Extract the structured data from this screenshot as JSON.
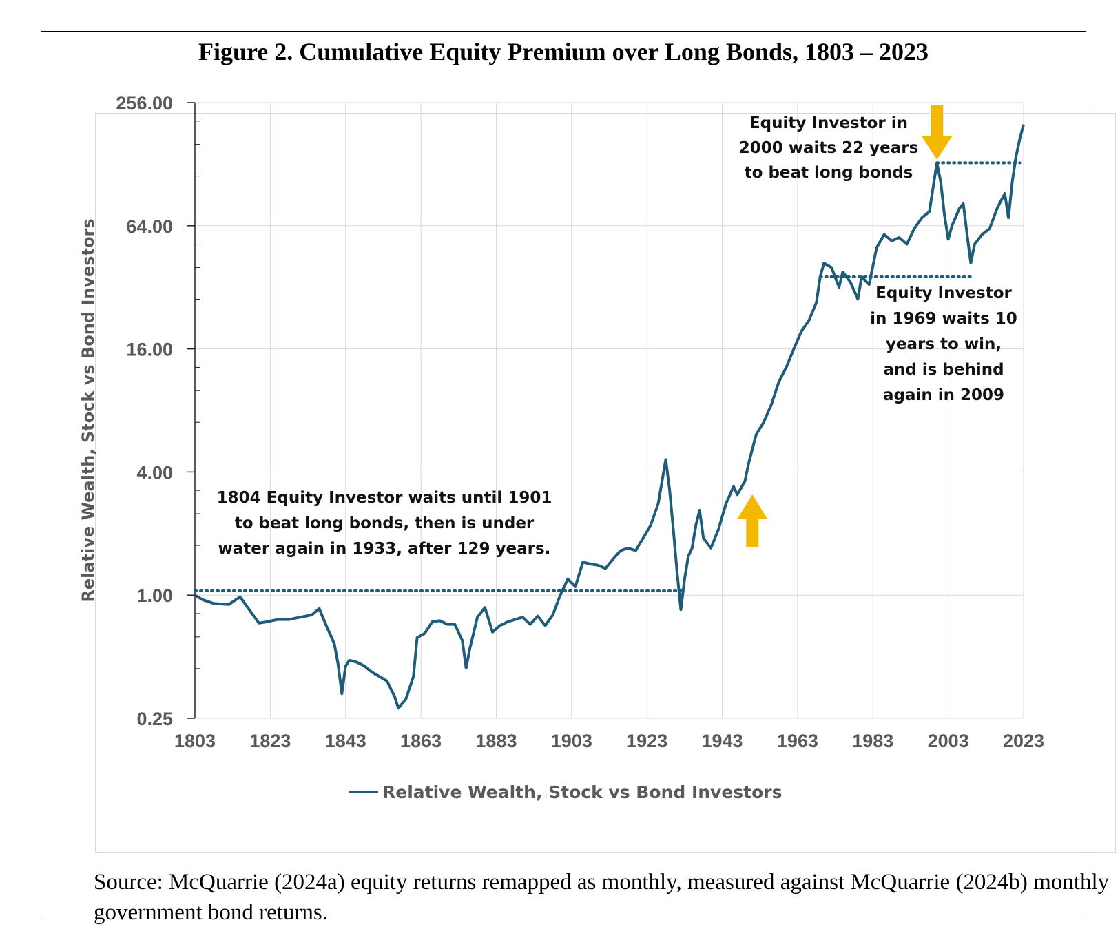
{
  "figure": {
    "title": "Figure 2.  Cumulative Equity Premium over Long Bonds, 1803 – 2023",
    "source": "Source: McQuarrie (2024a) equity returns remapped as monthly, measured against McQuarrie (2024b) monthly government bond returns."
  },
  "colors": {
    "series": "#1f5c7a",
    "arrow": "#f5b800",
    "grid": "#d9d9d9",
    "text": "#595959"
  },
  "chart_data": {
    "type": "line",
    "title": "Figure 2.  Cumulative Equity Premium over Long Bonds, 1803 – 2023",
    "xlabel": "",
    "ylabel": "Relative Wealth, Stock vs Bond Investors",
    "yscale": "log2",
    "xlim": [
      1803,
      2023
    ],
    "ylim": [
      0.25,
      256
    ],
    "y_ticks": [
      "256.00",
      "64.00",
      "16.00",
      "4.00",
      "1.00",
      "0.25"
    ],
    "y_tick_values": [
      256,
      64,
      16,
      4,
      1,
      0.25
    ],
    "x_ticks": [
      "1803",
      "1823",
      "1843",
      "1863",
      "1883",
      "1903",
      "1923",
      "1943",
      "1963",
      "1983",
      "2003",
      "2023"
    ],
    "grid": true,
    "legend_position": "bottom",
    "series": [
      {
        "name": "Relative Wealth, Stock vs Bond Investors",
        "x": [
          1803,
          1805,
          1808,
          1812,
          1815,
          1818,
          1820,
          1822,
          1825,
          1828,
          1831,
          1834,
          1836,
          1838,
          1840,
          1841,
          1842,
          1843,
          1844,
          1846,
          1848,
          1850,
          1852,
          1854,
          1856,
          1857,
          1859,
          1861,
          1862,
          1864,
          1866,
          1868,
          1870,
          1872,
          1874,
          1875,
          1876,
          1878,
          1880,
          1882,
          1884,
          1886,
          1888,
          1890,
          1892,
          1894,
          1896,
          1898,
          1900,
          1902,
          1904,
          1906,
          1908,
          1910,
          1912,
          1914,
          1916,
          1918,
          1920,
          1922,
          1924,
          1926,
          1928,
          1929,
          1930,
          1931,
          1932,
          1933,
          1934,
          1935,
          1936,
          1937,
          1938,
          1940,
          1942,
          1944,
          1946,
          1947,
          1949,
          1950,
          1952,
          1954,
          1956,
          1958,
          1960,
          1962,
          1964,
          1966,
          1968,
          1969,
          1970,
          1972,
          1974,
          1975,
          1977,
          1979,
          1980,
          1982,
          1984,
          1986,
          1988,
          1990,
          1992,
          1994,
          1996,
          1998,
          2000,
          2001,
          2002,
          2003,
          2004,
          2006,
          2007,
          2008,
          2009,
          2010,
          2012,
          2014,
          2016,
          2018,
          2019,
          2020,
          2021,
          2022,
          2023
        ],
        "values": [
          1.0,
          0.95,
          0.91,
          0.9,
          0.98,
          0.82,
          0.73,
          0.74,
          0.76,
          0.76,
          0.78,
          0.8,
          0.86,
          0.7,
          0.58,
          0.46,
          0.33,
          0.45,
          0.48,
          0.47,
          0.45,
          0.42,
          0.4,
          0.38,
          0.32,
          0.28,
          0.31,
          0.4,
          0.62,
          0.65,
          0.74,
          0.75,
          0.72,
          0.72,
          0.6,
          0.44,
          0.55,
          0.78,
          0.87,
          0.66,
          0.71,
          0.74,
          0.76,
          0.78,
          0.72,
          0.79,
          0.71,
          0.8,
          1.0,
          1.2,
          1.1,
          1.45,
          1.42,
          1.4,
          1.35,
          1.5,
          1.65,
          1.7,
          1.65,
          1.9,
          2.2,
          2.8,
          4.6,
          3.3,
          2.1,
          1.3,
          0.85,
          1.2,
          1.55,
          1.7,
          2.2,
          2.6,
          1.9,
          1.7,
          2.1,
          2.8,
          3.4,
          3.1,
          3.6,
          4.4,
          6.1,
          7.0,
          8.5,
          11.0,
          13.0,
          16.0,
          19.5,
          22.0,
          27.0,
          36.0,
          42.0,
          40.0,
          32.0,
          38.0,
          34.0,
          28.0,
          36.0,
          33.0,
          50.0,
          58.0,
          54.0,
          56.0,
          52.0,
          62.0,
          70.0,
          75.0,
          130.0,
          105.0,
          72.0,
          55.0,
          64.0,
          78.0,
          82.0,
          58.0,
          42.0,
          52.0,
          58.0,
          62.0,
          78.0,
          92.0,
          70.0,
          105.0,
          140.0,
          170.0,
          200.0
        ]
      }
    ],
    "annotations": [
      {
        "lines": [
          "1804 Equity Investor waits until 1901",
          "to beat long bonds, then is under",
          "water again in 1933, after 129 years."
        ],
        "reference_level": 1.05,
        "reference_from": 1803,
        "reference_to": 1933
      },
      {
        "lines": [
          "Equity Investor in",
          "2000 waits 22 years",
          "to beat long bonds"
        ],
        "reference_level": 130,
        "reference_from": 2000,
        "reference_to": 2022,
        "arrow": "down",
        "arrow_at": 2000
      },
      {
        "lines": [
          "Equity Investor",
          "in 1969 waits 10",
          "years to win,",
          "and is behind",
          "again in 2009"
        ],
        "reference_level": 36,
        "reference_from": 1969,
        "reference_to": 2009
      },
      {
        "arrow": "up",
        "arrow_at": 1951
      }
    ]
  }
}
